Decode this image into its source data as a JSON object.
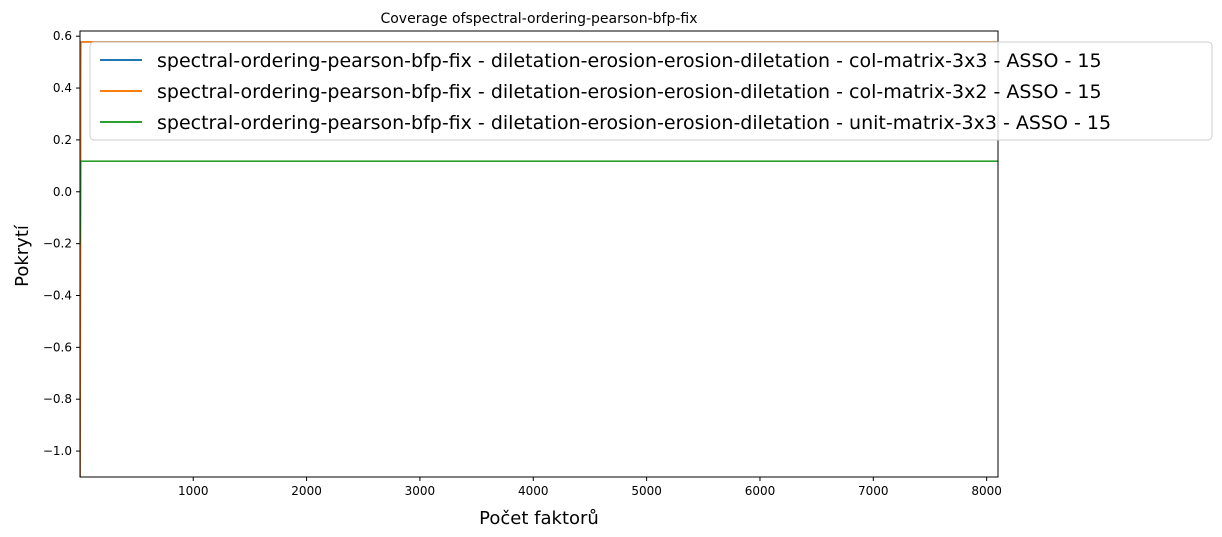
{
  "chart_data": {
    "type": "line",
    "title": "Coverage ofspectral-ordering-pearson-bfp-fix",
    "xlabel": "Počet faktorů",
    "ylabel": "Pokrytí",
    "xlim": [
      1,
      8100
    ],
    "ylim": [
      -1.1,
      0.62
    ],
    "x_ticks": [
      1000,
      2000,
      3000,
      4000,
      5000,
      6000,
      7000,
      8000
    ],
    "x_tick_labels": [
      "1000",
      "2000",
      "3000",
      "4000",
      "5000",
      "6000",
      "7000",
      "8000"
    ],
    "y_ticks": [
      -1.0,
      -0.8,
      -0.6,
      -0.4,
      -0.2,
      0.0,
      0.2,
      0.4,
      0.6
    ],
    "y_tick_labels": [
      "−1.0",
      "−0.8",
      "−0.6",
      "−0.4",
      "−0.2",
      "0.0",
      "0.2",
      "0.4",
      "0.6"
    ],
    "grid": false,
    "legend_position": "top-right",
    "series": [
      {
        "name": "spectral-ordering-pearson-bfp-fix - diletation-erosion-erosion-diletation - col-matrix-3x3 - ASSO - 15",
        "color": "#1f77b4",
        "x": [
          1,
          8,
          8100
        ],
        "y": [
          -1.1,
          0.578,
          0.578
        ]
      },
      {
        "name": "spectral-ordering-pearson-bfp-fix - diletation-erosion-erosion-diletation - col-matrix-3x2 - ASSO - 15",
        "color": "#ff7f0e",
        "x": [
          1,
          8,
          8100
        ],
        "y": [
          -1.1,
          0.578,
          0.578
        ]
      },
      {
        "name": "spectral-ordering-pearson-bfp-fix - diletation-erosion-erosion-diletation - unit-matrix-3x3 - ASSO - 15",
        "color": "#2ca02c",
        "x": [
          1,
          8,
          8100
        ],
        "y": [
          -0.2,
          0.118,
          0.118
        ]
      }
    ]
  }
}
